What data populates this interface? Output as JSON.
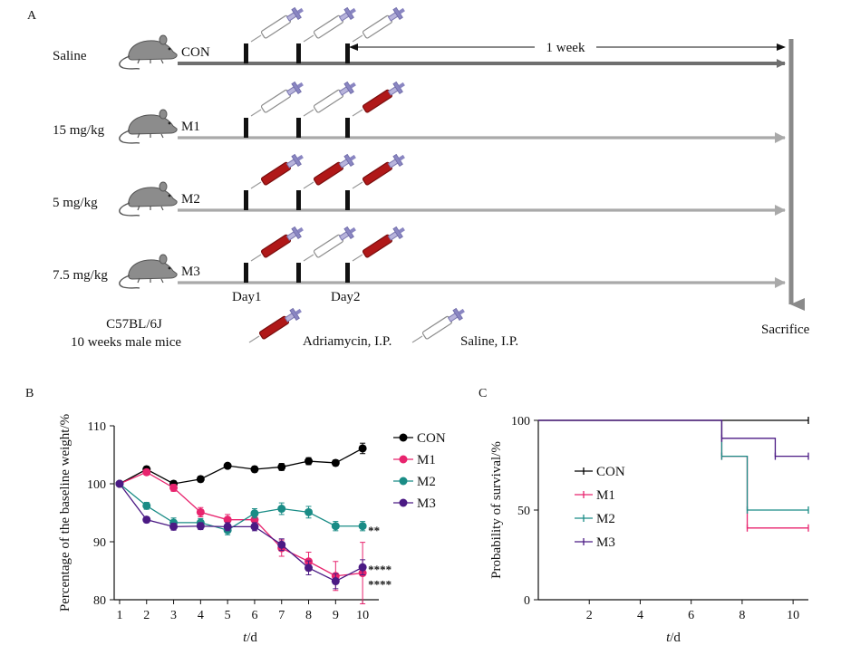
{
  "panelA": {
    "label": "A",
    "groups": [
      {
        "dose": "Saline",
        "name": "CON",
        "injections": [
          "saline",
          "saline",
          "saline"
        ],
        "arrow_color": "#6f6f6f"
      },
      {
        "dose": "15 mg/kg",
        "name": "M1",
        "injections": [
          "saline",
          "saline",
          "adriamycin"
        ],
        "arrow_color": "#a9a9a9"
      },
      {
        "dose": "5 mg/kg",
        "name": "M2",
        "injections": [
          "adriamycin",
          "adriamycin",
          "adriamycin"
        ],
        "arrow_color": "#a9a9a9"
      },
      {
        "dose": "7.5 mg/kg",
        "name": "M3",
        "injections": [
          "adriamycin",
          "saline",
          "adriamycin"
        ],
        "arrow_color": "#a9a9a9"
      }
    ],
    "day1_label": "Day1",
    "day2_label": "Day2",
    "week_label": "1 week",
    "sacrifice_label": "Sacrifice",
    "mouse_strain": "C57BL/6J",
    "mouse_desc": "10 weeks male mice",
    "legend_adriamycin": "Adriamycin, I.P.",
    "legend_saline": "Saline, I.P.",
    "colors": {
      "adriamycin": "#b01818",
      "saline_plunger": "#8a86c2",
      "mouse": "#8c8c8c"
    }
  },
  "chart_data": [
    {
      "panel": "B",
      "type": "line",
      "ylabel": "Percentage of the baseline weight/%",
      "xlabel_italic": "t",
      "xlabel_unit": "/d",
      "xlim": [
        0.8,
        10.6
      ],
      "ylim": [
        80,
        110
      ],
      "xticks": [
        1,
        2,
        3,
        4,
        5,
        6,
        7,
        8,
        9,
        10
      ],
      "yticks": [
        80,
        90,
        100,
        110
      ],
      "x": [
        1,
        2,
        3,
        4,
        5,
        6,
        7,
        8,
        9,
        10
      ],
      "series": [
        {
          "name": "CON",
          "color": "#000000",
          "values": [
            100,
            102.5,
            100,
            100.8,
            103.1,
            102.5,
            102.9,
            103.9,
            103.6,
            106.1
          ],
          "err": [
            0,
            0.5,
            0.5,
            0.5,
            0.4,
            0.5,
            0.6,
            0.6,
            0.5,
            0.9
          ]
        },
        {
          "name": "M1",
          "color": "#e8246e",
          "values": [
            100,
            102,
            99.3,
            95.1,
            93.8,
            93.8,
            88.9,
            86.6,
            84.1,
            84.6
          ],
          "err": [
            0,
            0.5,
            0.6,
            0.8,
            0.9,
            1.0,
            1.4,
            1.6,
            2.5,
            5.3
          ]
        },
        {
          "name": "M2",
          "color": "#1a8c86",
          "values": [
            100,
            96.2,
            93.3,
            93.3,
            92.0,
            94.9,
            95.7,
            95.1,
            92.7,
            92.7
          ],
          "err": [
            0,
            0.6,
            0.8,
            0.7,
            0.8,
            0.8,
            1.0,
            1.0,
            0.8,
            0.8
          ]
        },
        {
          "name": "M3",
          "color": "#4b1a84",
          "values": [
            100,
            93.8,
            92.6,
            92.7,
            92.6,
            92.6,
            89.5,
            85.5,
            83.2,
            85.6
          ],
          "err": [
            0,
            0.5,
            0.6,
            0.6,
            0.7,
            0.7,
            1.0,
            1.2,
            1.3,
            1.3
          ]
        }
      ],
      "annotations": [
        {
          "series": "M2",
          "text": "**",
          "x": 10,
          "y": 92.0
        },
        {
          "series": "M1",
          "text": "****",
          "x": 10,
          "y": 85.3
        },
        {
          "series": "M3",
          "text": "****",
          "x": 10,
          "y": 82.7
        }
      ],
      "legend_position": "top-right"
    },
    {
      "panel": "C",
      "type": "line",
      "step": true,
      "ylabel": "Probability of survival/%",
      "xlabel_italic": "t",
      "xlabel_unit": "/d",
      "xlim": [
        0,
        10.6
      ],
      "ylim": [
        0,
        100
      ],
      "xticks": [
        2,
        4,
        6,
        8,
        10
      ],
      "yticks": [
        0,
        50,
        100
      ],
      "series": [
        {
          "name": "CON",
          "color": "#000000",
          "x": [
            0,
            10.6
          ],
          "values": [
            100,
            100
          ],
          "censor_x": [
            10.6
          ]
        },
        {
          "name": "M1",
          "color": "#e8246e",
          "x": [
            0,
            7.2,
            8.2,
            10.6
          ],
          "values": [
            100,
            80,
            40,
            40
          ],
          "censor_x": [
            7.2,
            8.2,
            10.6
          ]
        },
        {
          "name": "M2",
          "color": "#1a8c86",
          "x": [
            0,
            7.2,
            8.2,
            10.6
          ],
          "values": [
            100,
            80,
            50,
            50
          ],
          "censor_x": [
            7.2,
            8.2,
            10.6
          ]
        },
        {
          "name": "M3",
          "color": "#4b1a84",
          "x": [
            0,
            7.2,
            9.3,
            10.6
          ],
          "values": [
            100,
            90,
            80,
            80
          ],
          "censor_x": [
            7.2,
            9.3,
            10.6
          ]
        }
      ],
      "legend_position": "left"
    }
  ],
  "panelB": {
    "label": "B"
  },
  "panelC": {
    "label": "C"
  }
}
